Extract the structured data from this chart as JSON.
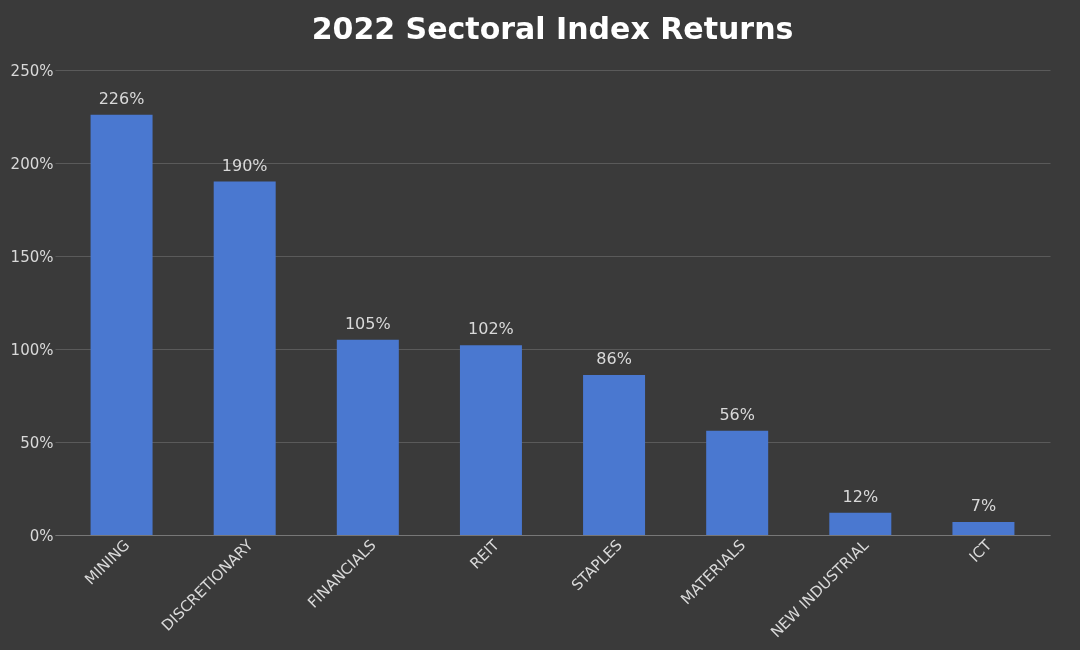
{
  "chart_data": {
    "type": "bar",
    "title": "2022 Sectoral Index Returns",
    "categories": [
      "MINING",
      "DISCRETIONARY",
      "FINANCIALS",
      "REIT",
      "STAPLES",
      "MATERIALS",
      "NEW INDUSTRIAL",
      "ICT"
    ],
    "values": [
      226,
      190,
      105,
      102,
      86,
      56,
      12,
      7
    ],
    "value_labels": [
      "226%",
      "190%",
      "105%",
      "102%",
      "86%",
      "56%",
      "12%",
      "7%"
    ],
    "color": "#4a78d0",
    "ylim": [
      0,
      250
    ],
    "yticks": [
      {
        "value": 0,
        "label": "0%"
      },
      {
        "value": 50,
        "label": "50%"
      },
      {
        "value": 100,
        "label": "100%"
      },
      {
        "value": 150,
        "label": "150%"
      },
      {
        "value": 200,
        "label": "200%"
      },
      {
        "value": 250,
        "label": "250%"
      }
    ],
    "grid": "y"
  }
}
